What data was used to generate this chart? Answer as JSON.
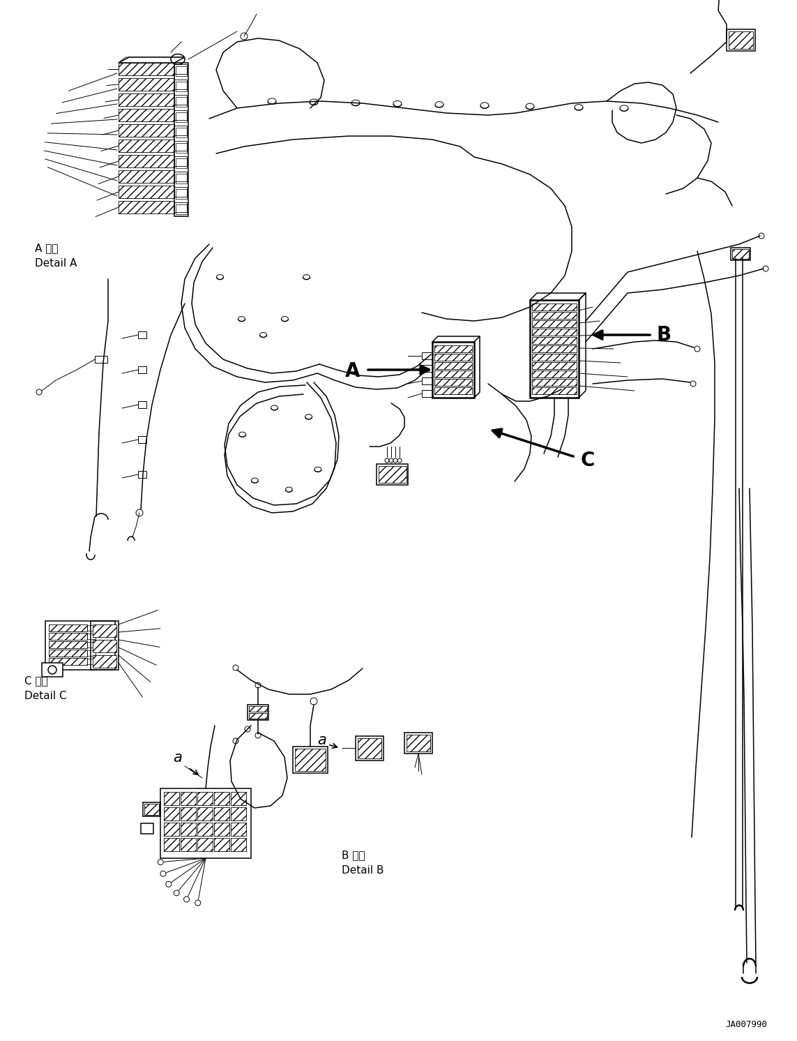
{
  "background_color": "#ffffff",
  "line_color": "#000000",
  "labels": {
    "detail_a_jp": "A 詳細",
    "detail_a_en": "Detail A",
    "detail_b_jp": "B 詳細",
    "detail_b_en": "Detail B",
    "detail_c_jp": "C 詳細",
    "detail_c_en": "Detail C",
    "label_a": "A",
    "label_b": "B",
    "label_c": "C",
    "label_a_small": "a",
    "part_number": "JA007990"
  },
  "font_sizes": {
    "label_large": 18,
    "label_medium": 11,
    "label_small": 9,
    "part_number": 9,
    "callout": 20
  }
}
